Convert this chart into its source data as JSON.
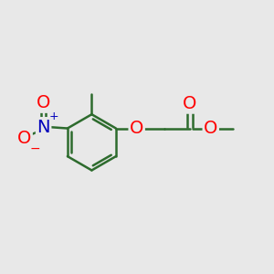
{
  "bg_color": "#e8e8e8",
  "bond_color": "#2d6b2d",
  "atom_colors": {
    "O": "#ff0000",
    "N": "#0000bb",
    "C": "#2d6b2d"
  },
  "font_size_atom": 14,
  "line_width": 1.8,
  "figsize": [
    3.0,
    3.0
  ],
  "dpi": 100
}
